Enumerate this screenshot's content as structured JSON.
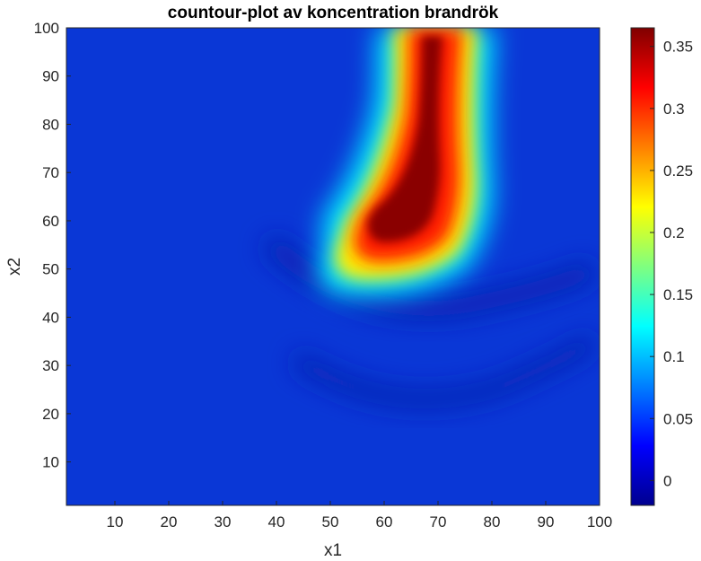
{
  "chart_data": {
    "type": "heatmap",
    "title": "countour-plot av koncentration brandrök",
    "xlabel": "x1",
    "ylabel": "x2",
    "xlim": [
      1,
      100
    ],
    "ylim": [
      1,
      100
    ],
    "xticks": [
      10,
      20,
      30,
      40,
      50,
      60,
      70,
      80,
      90,
      100
    ],
    "yticks": [
      10,
      20,
      30,
      40,
      50,
      60,
      70,
      80,
      90,
      100
    ],
    "colormap": "jet",
    "colorbar": {
      "range": [
        -0.02,
        0.365
      ],
      "ticks": [
        0,
        0.05,
        0.1,
        0.15,
        0.2,
        0.25,
        0.3,
        0.35
      ],
      "tick_labels": [
        "0",
        "0.05",
        "0.1",
        "0.15",
        "0.2",
        "0.25",
        "0.3",
        "0.35"
      ]
    },
    "field_description_values": {
      "plume_centerline": [
        {
          "x1": 57,
          "x2": 55,
          "value": 0.32
        },
        {
          "x1": 60,
          "x2": 62,
          "value": 0.36
        },
        {
          "x1": 64,
          "x2": 70,
          "value": 0.35
        },
        {
          "x1": 67,
          "x2": 78,
          "value": 0.34
        },
        {
          "x1": 69,
          "x2": 86,
          "value": 0.35
        },
        {
          "x1": 70,
          "x2": 93,
          "value": 0.36
        },
        {
          "x1": 71,
          "x2": 100,
          "value": 0.3
        }
      ],
      "background_value": 0.04,
      "minimum_value": -0.02
    }
  }
}
